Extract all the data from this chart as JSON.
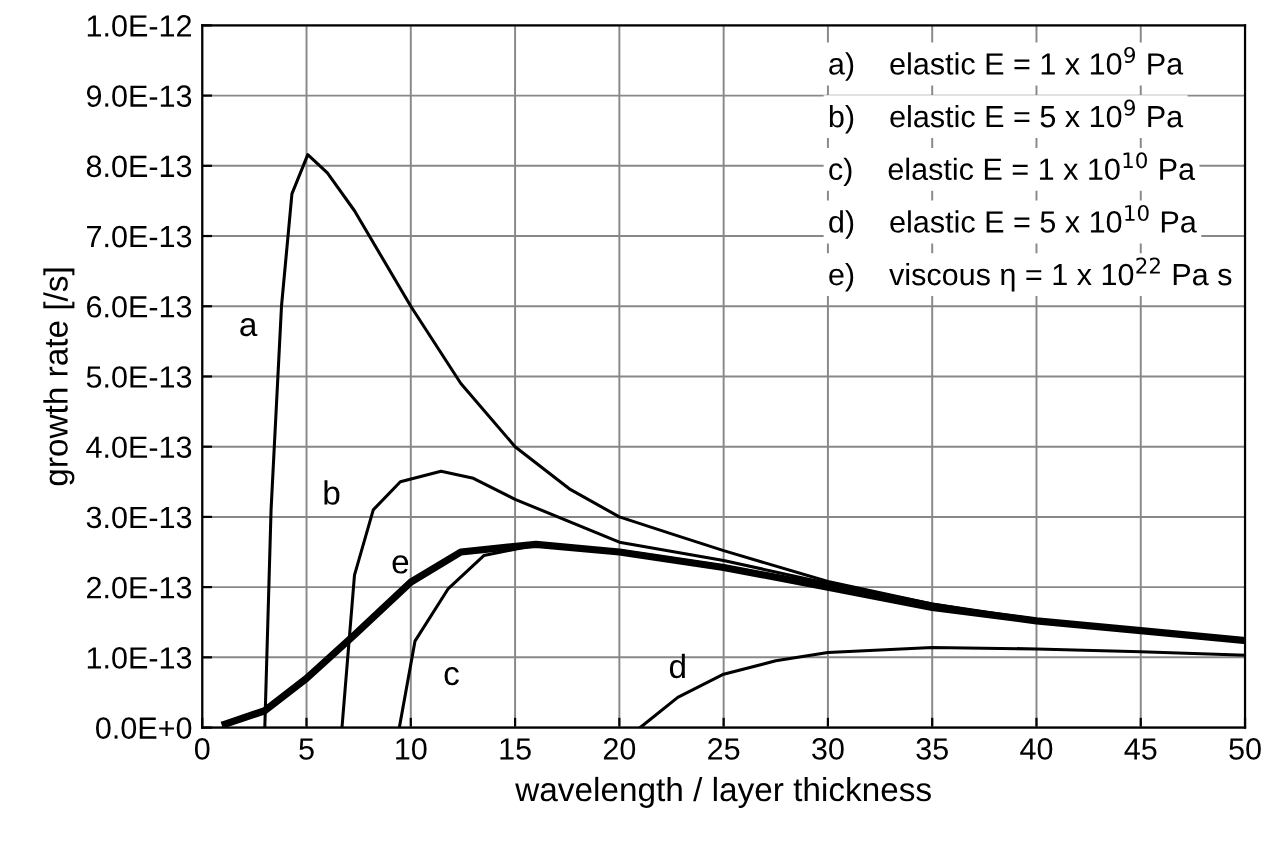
{
  "chart_data": {
    "type": "line",
    "xlabel": "wavelength / layer thickness",
    "ylabel": "growth rate [/s]",
    "xlim": [
      0,
      50
    ],
    "ylim": [
      0,
      1e-12
    ],
    "xticks": [
      0,
      5,
      10,
      15,
      20,
      25,
      30,
      35,
      40,
      45,
      50
    ],
    "yticks": [
      {
        "value": 0,
        "label": "0.0E+0"
      },
      {
        "value": 1e-13,
        "label": "1.0E-13"
      },
      {
        "value": 2e-13,
        "label": "2.0E-13"
      },
      {
        "value": 3e-13,
        "label": "3.0E-13"
      },
      {
        "value": 4e-13,
        "label": "4.0E-13"
      },
      {
        "value": 5e-13,
        "label": "5.0E-13"
      },
      {
        "value": 6e-13,
        "label": "6.0E-13"
      },
      {
        "value": 7e-13,
        "label": "7.0E-13"
      },
      {
        "value": 8e-13,
        "label": "8.0E-13"
      },
      {
        "value": 9e-13,
        "label": "9.0E-13"
      },
      {
        "value": 1e-12,
        "label": "1.0E-12"
      }
    ],
    "grid": true,
    "marker": "none",
    "line_style": "solid",
    "annotations": [
      "a)    elastic E = 1 x 10$^{9}$ Pa",
      "b)    elastic E = 5 x 10$^{9}$ Pa",
      "c)    elastic E = 1 x 10$^{10}$ Pa",
      "d)    elastic E = 5 x 10$^{10}$ Pa",
      "e)    viscous η = 1 x 10$^{22}$ Pa s"
    ],
    "series": [
      {
        "name": "a",
        "color": "#000000",
        "x": [
          3.0,
          3.3,
          3.8,
          4.3,
          5.06,
          6.0,
          7.3,
          10,
          12.4,
          15,
          17.6,
          20,
          22.8,
          25,
          30,
          35,
          40,
          45,
          50
        ],
        "values": [
          0,
          3.1e-13,
          6e-13,
          7.6e-13,
          8.16e-13,
          7.9e-13,
          7.36e-13,
          6e-13,
          4.9e-13,
          4e-13,
          3.4e-13,
          3e-13,
          2.73e-13,
          2.52e-13,
          2.08e-13,
          1.76e-13,
          1.52e-13,
          1.38e-13,
          1.24e-13
        ]
      },
      {
        "name": "b",
        "color": "#000000",
        "x": [
          6.7,
          7.3,
          8.2,
          9.5,
          11.45,
          13,
          15,
          20,
          25,
          30,
          35,
          40,
          45,
          50
        ],
        "values": [
          0,
          2.17e-13,
          3.1e-13,
          3.5e-13,
          3.65e-13,
          3.55e-13,
          3.25e-13,
          2.64e-13,
          2.38e-13,
          2.05e-13,
          1.76e-13,
          1.54e-13,
          1.38e-13,
          1.24e-13
        ]
      },
      {
        "name": "c",
        "color": "#000000",
        "x": [
          9.45,
          10.2,
          11.8,
          13.5,
          16,
          20,
          25,
          30,
          35,
          40,
          45,
          50
        ],
        "values": [
          0,
          1.23e-13,
          1.98e-13,
          2.45e-13,
          2.6e-13,
          2.52e-13,
          2.3e-13,
          2.02e-13,
          1.73e-13,
          1.53e-13,
          1.38e-13,
          1.24e-13
        ]
      },
      {
        "name": "d",
        "color": "#000000",
        "x": [
          21,
          22.8,
          25,
          27.5,
          30,
          35,
          40,
          45,
          50
        ],
        "values": [
          0,
          4.3e-14,
          7.6e-14,
          9.5e-14,
          1.07e-13,
          1.14e-13,
          1.12e-13,
          1.08e-13,
          1.03e-13
        ]
      },
      {
        "name": "e",
        "color": "#000000",
        "x": [
          1.1,
          3,
          5,
          7.3,
          10,
          12.4,
          16,
          20,
          25,
          30,
          35,
          40,
          45,
          50
        ],
        "values": [
          5e-15,
          2.4e-14,
          7e-14,
          1.32e-13,
          2.07e-13,
          2.5e-13,
          2.61e-13,
          2.5e-13,
          2.28e-13,
          2e-13,
          1.71e-13,
          1.52e-13,
          1.38e-13,
          1.24e-13
        ]
      }
    ]
  }
}
